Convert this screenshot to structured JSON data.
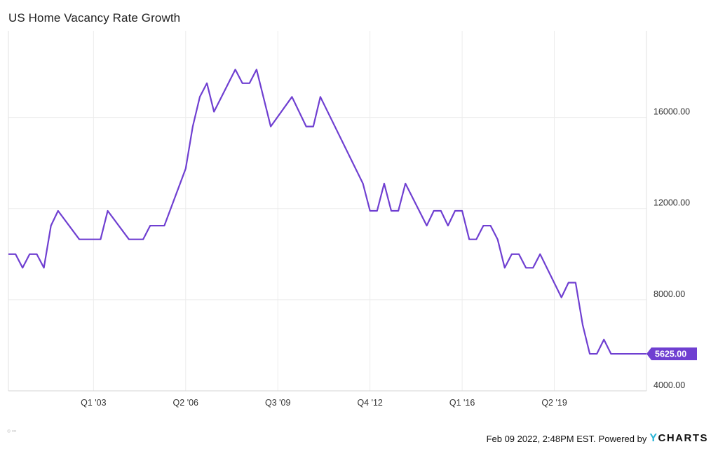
{
  "chart_data": {
    "type": "line",
    "title": "US Home Vacancy Rate Growth",
    "xlabel": "",
    "ylabel": "",
    "x_ticks": [
      {
        "label": "Q1 '03",
        "t": 2003.0
      },
      {
        "label": "Q2 '06",
        "t": 2006.25
      },
      {
        "label": "Q3 '09",
        "t": 2009.5
      },
      {
        "label": "Q4 '12",
        "t": 2012.75
      },
      {
        "label": "Q1 '16",
        "t": 2016.0
      },
      {
        "label": "Q2 '19",
        "t": 2019.25
      }
    ],
    "x_range": [
      2000.0,
      2022.5
    ],
    "y_ticks": [
      {
        "label": "4000.00",
        "v": 4000
      },
      {
        "label": "8000.00",
        "v": 8000
      },
      {
        "label": "12000.00",
        "v": 12000
      },
      {
        "label": "16000.00",
        "v": 16000
      }
    ],
    "ylim": [
      4000,
      19800
    ],
    "grid": true,
    "series": [
      {
        "color": "#6f3fd1",
        "points": [
          [
            2000.0,
            10000
          ],
          [
            2000.25,
            10000
          ],
          [
            2000.5,
            9400
          ],
          [
            2000.75,
            10000
          ],
          [
            2001.0,
            10000
          ],
          [
            2001.25,
            9400
          ],
          [
            2001.5,
            11250
          ],
          [
            2001.75,
            11900
          ],
          [
            2002.5,
            10650
          ],
          [
            2003.25,
            10650
          ],
          [
            2003.5,
            11900
          ],
          [
            2004.25,
            10650
          ],
          [
            2004.75,
            10650
          ],
          [
            2005.0,
            11250
          ],
          [
            2005.5,
            11250
          ],
          [
            2006.25,
            13750
          ],
          [
            2006.5,
            15600
          ],
          [
            2006.75,
            16900
          ],
          [
            2007.0,
            17500
          ],
          [
            2007.25,
            16250
          ],
          [
            2008.0,
            18100
          ],
          [
            2008.25,
            17500
          ],
          [
            2008.5,
            17500
          ],
          [
            2008.75,
            18100
          ],
          [
            2009.25,
            15600
          ],
          [
            2010.0,
            16900
          ],
          [
            2010.5,
            15600
          ],
          [
            2010.75,
            15600
          ],
          [
            2011.0,
            16900
          ],
          [
            2012.5,
            13100
          ],
          [
            2012.75,
            11900
          ],
          [
            2013.0,
            11900
          ],
          [
            2013.25,
            13100
          ],
          [
            2013.5,
            11900
          ],
          [
            2013.75,
            11900
          ],
          [
            2014.0,
            13100
          ],
          [
            2014.75,
            11250
          ],
          [
            2015.0,
            11900
          ],
          [
            2015.25,
            11900
          ],
          [
            2015.5,
            11250
          ],
          [
            2015.75,
            11900
          ],
          [
            2016.0,
            11900
          ],
          [
            2016.25,
            10650
          ],
          [
            2016.5,
            10650
          ],
          [
            2016.75,
            11250
          ],
          [
            2017.0,
            11250
          ],
          [
            2017.25,
            10650
          ],
          [
            2017.5,
            9400
          ],
          [
            2017.75,
            10000
          ],
          [
            2018.0,
            10000
          ],
          [
            2018.25,
            9400
          ],
          [
            2018.5,
            9400
          ],
          [
            2018.75,
            10000
          ],
          [
            2019.5,
            8100
          ],
          [
            2019.75,
            8750
          ],
          [
            2020.0,
            8750
          ],
          [
            2020.25,
            6900
          ],
          [
            2020.5,
            5625
          ],
          [
            2020.75,
            5625
          ],
          [
            2021.0,
            6250
          ],
          [
            2021.25,
            5625
          ],
          [
            2022.5,
            5625
          ]
        ]
      }
    ],
    "last_value_label": "5625.00",
    "last_value": 5625
  },
  "footer": {
    "timestamp": "Feb 09 2022, 2:48PM EST.",
    "powered": "Powered by",
    "brand_y": "Y",
    "brand_rest": "CHARTS"
  }
}
